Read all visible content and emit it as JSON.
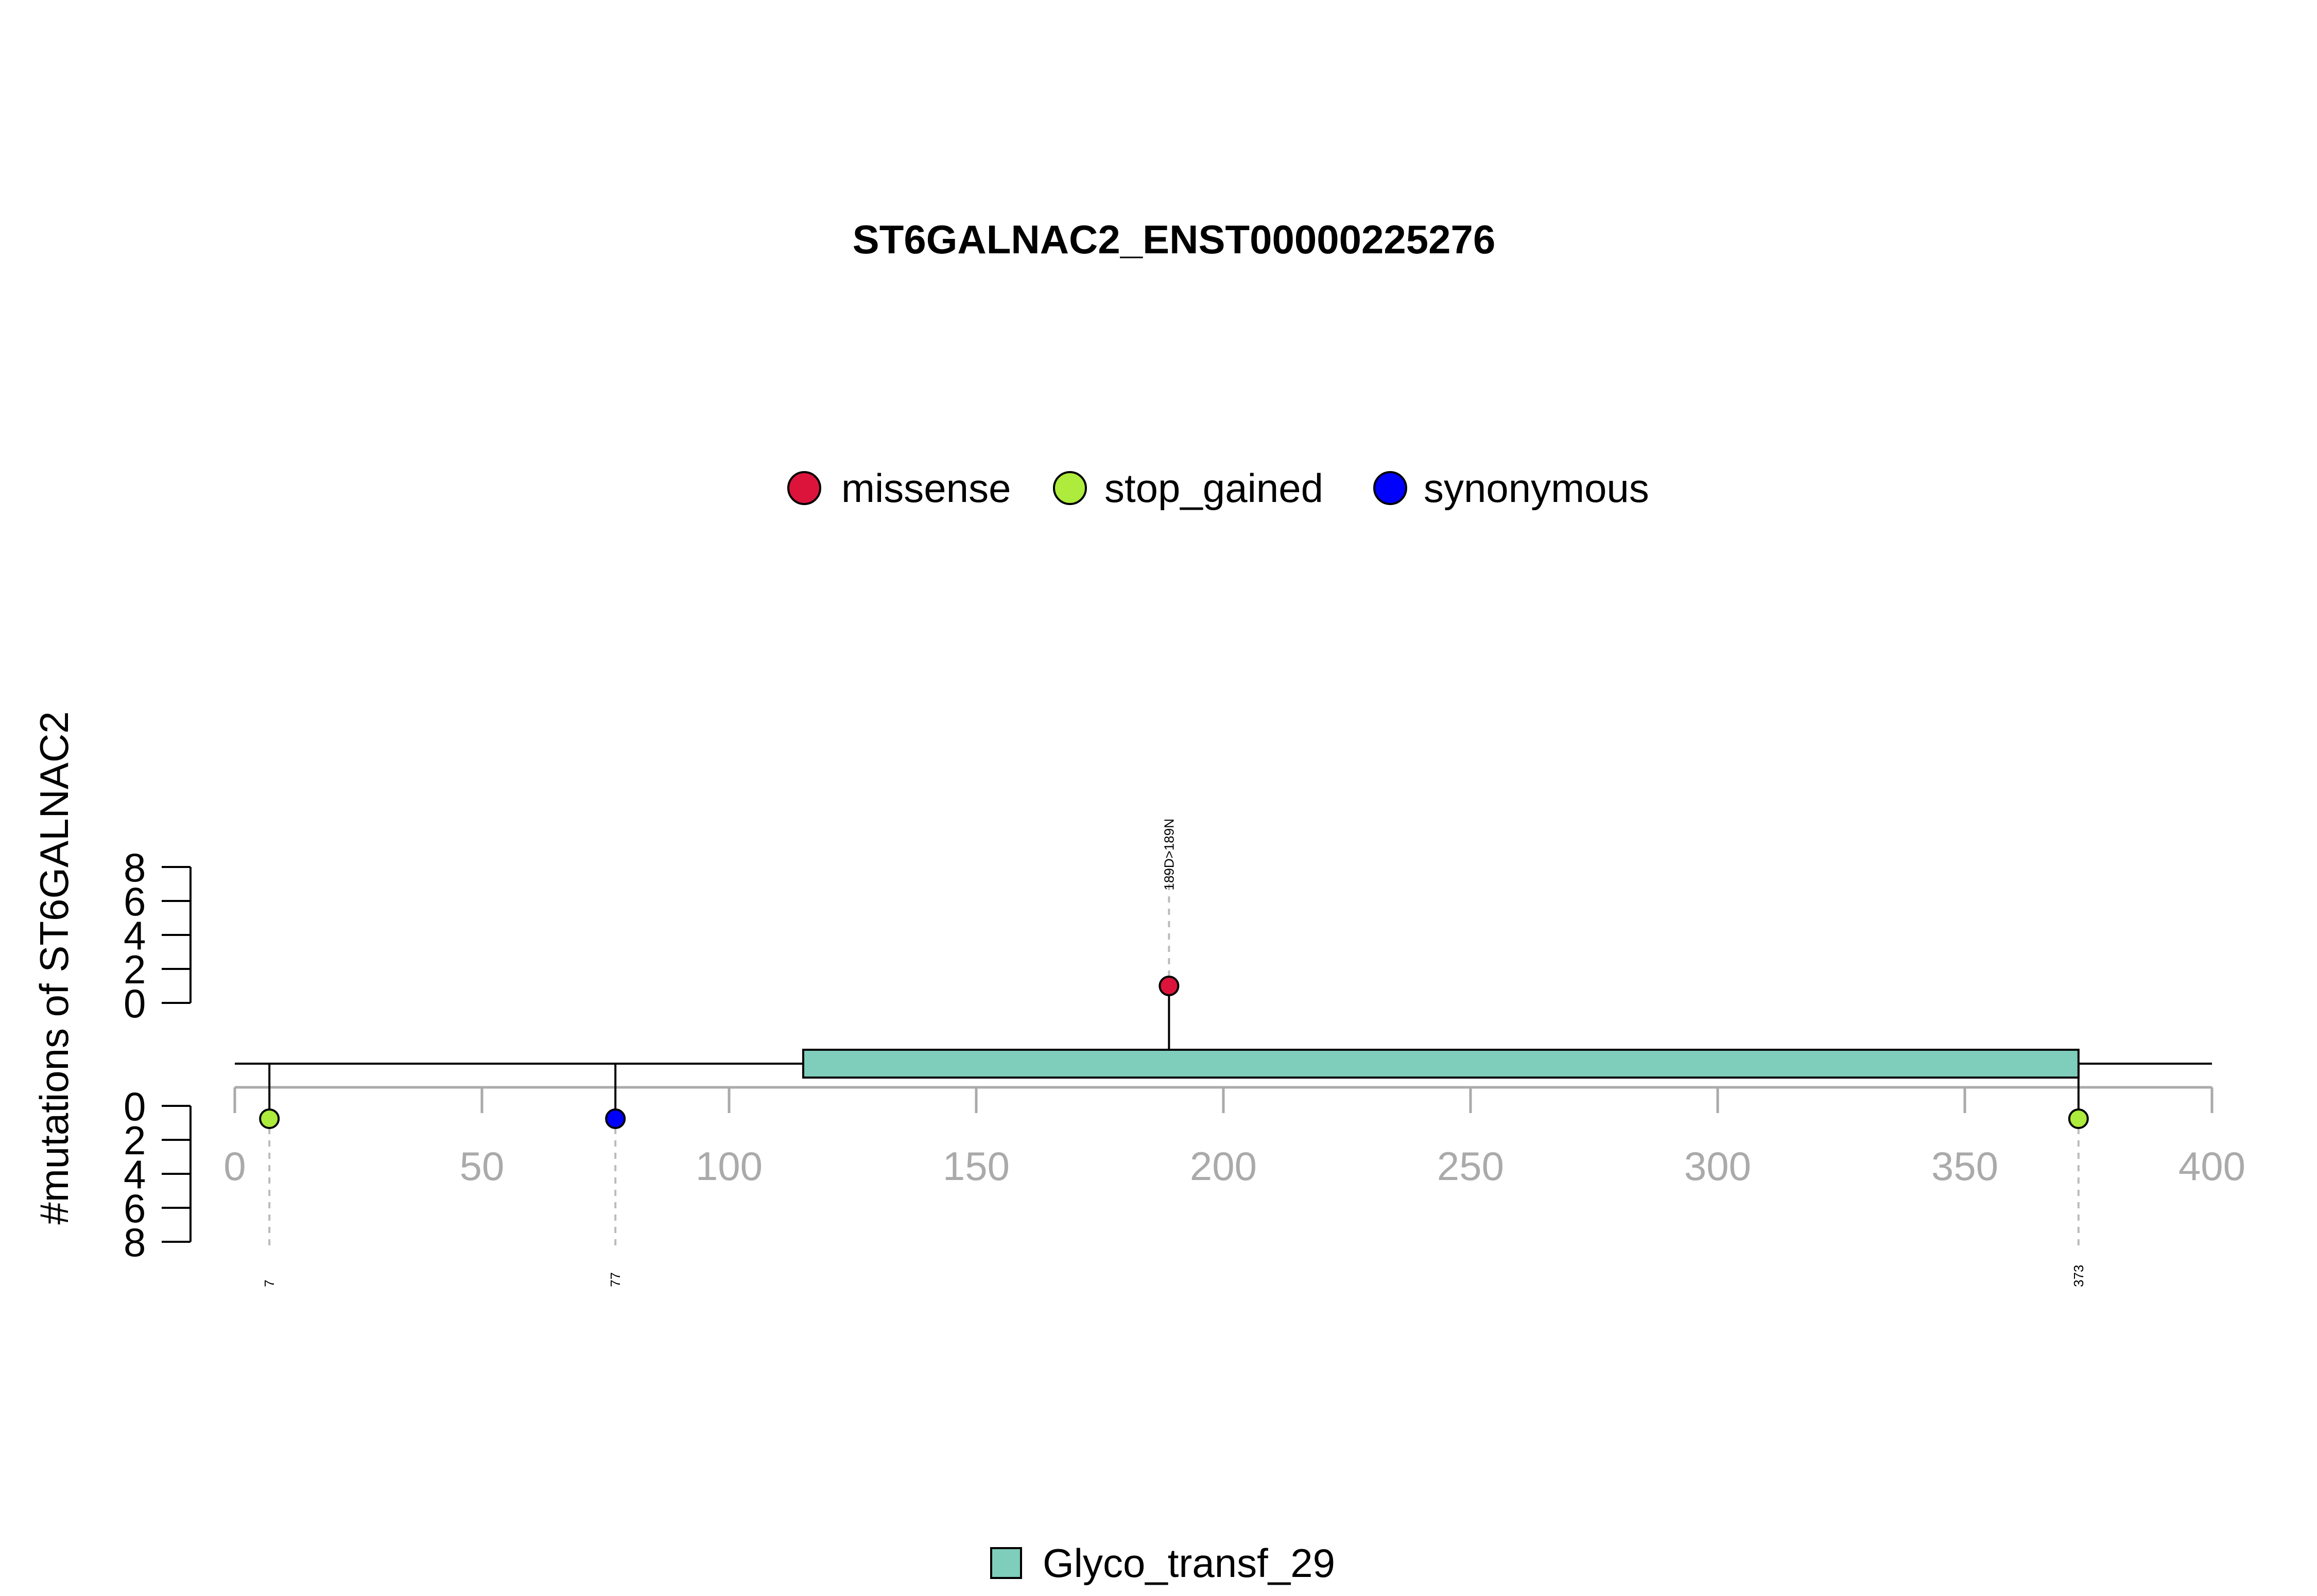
{
  "chart_data": {
    "type": "lollipop",
    "title": "ST6GALNAC2_ENST00000225276",
    "ylabel": "#mutations of ST6GALNAC2",
    "xlim": [
      0,
      400
    ],
    "x_ticks": [
      0,
      50,
      100,
      150,
      200,
      250,
      300,
      350,
      400
    ],
    "y_ticks_upper": [
      0,
      2,
      4,
      6,
      8
    ],
    "y_ticks_lower": [
      0,
      2,
      4,
      6,
      8
    ],
    "protein_length": 400,
    "legend_top": [
      {
        "label": "missense",
        "color": "#DC143C"
      },
      {
        "label": "stop_gained",
        "color": "#ADEB3C"
      },
      {
        "label": "synonymous",
        "color": "#0000FF"
      }
    ],
    "domains": [
      {
        "name": "Glyco_transf_29",
        "start": 115,
        "end": 373,
        "color": "#7FCDBB"
      }
    ],
    "mutations": [
      {
        "position": 189,
        "count": 1,
        "type": "missense",
        "side": "up",
        "label": "189D>189N"
      },
      {
        "position": 7,
        "count": 1,
        "type": "stop_gained",
        "side": "down",
        "label": "7"
      },
      {
        "position": 77,
        "count": 1,
        "type": "synonymous",
        "side": "down",
        "label": "77"
      },
      {
        "position": 373,
        "count": 1,
        "type": "stop_gained",
        "side": "down",
        "label": "373"
      }
    ],
    "grid": false
  }
}
